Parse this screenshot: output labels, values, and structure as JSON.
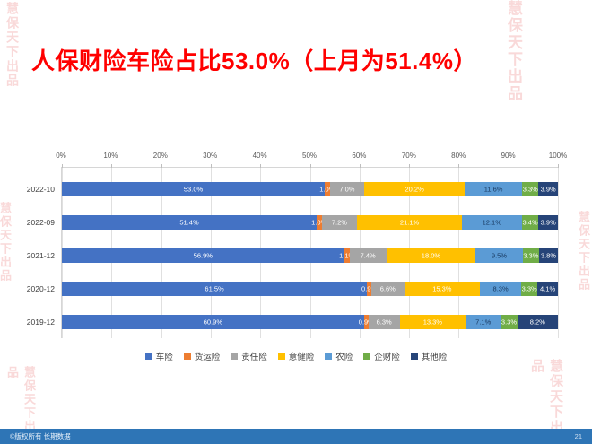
{
  "slide": {
    "title": "人保财险车险占比53.0%（上月为51.4%）",
    "title_color": "#FF0000"
  },
  "watermark": {
    "text": "慧保天下出品"
  },
  "footer": {
    "copyright": "©版权所有 长期数据",
    "page_number": "21",
    "bar_color": "#2E75B6"
  },
  "chart_data": {
    "type": "bar",
    "orientation": "horizontal",
    "stacked": true,
    "grid": true,
    "legend_position": "bottom",
    "xlim": [
      0,
      100
    ],
    "x_axis_ticks": [
      "0%",
      "10%",
      "20%",
      "30%",
      "40%",
      "50%",
      "60%",
      "70%",
      "80%",
      "90%",
      "100%"
    ],
    "categories": [
      "2022-10",
      "2022-09",
      "2021-12",
      "2020-12",
      "2019-12"
    ],
    "series": [
      {
        "name": "车险",
        "color": "#4472C4",
        "label_color": "#ffffff",
        "values": [
          53.0,
          51.4,
          56.9,
          61.5,
          60.9
        ]
      },
      {
        "name": "货运险",
        "color": "#ED7D31",
        "label_color": "#ffffff",
        "values": [
          1.0,
          1.0,
          1.1,
          0.9,
          0.9
        ]
      },
      {
        "name": "责任险",
        "color": "#A5A5A5",
        "label_color": "#ffffff",
        "values": [
          7.0,
          7.2,
          7.4,
          6.6,
          6.3
        ]
      },
      {
        "name": "意健险",
        "color": "#FFC000",
        "label_color": "#ffffff",
        "values": [
          20.2,
          21.1,
          18.0,
          15.3,
          13.3
        ]
      },
      {
        "name": "农险",
        "color": "#5B9BD5",
        "label_color": "#17375E",
        "values": [
          11.6,
          12.1,
          9.5,
          8.3,
          7.1
        ]
      },
      {
        "name": "企财险",
        "color": "#70AD47",
        "label_color": "#ffffff",
        "values": [
          3.3,
          3.4,
          3.3,
          3.3,
          3.3
        ]
      },
      {
        "name": "其他险",
        "color": "#264478",
        "label_color": "#ffffff",
        "values": [
          3.9,
          3.9,
          3.8,
          4.1,
          8.2
        ]
      }
    ]
  }
}
